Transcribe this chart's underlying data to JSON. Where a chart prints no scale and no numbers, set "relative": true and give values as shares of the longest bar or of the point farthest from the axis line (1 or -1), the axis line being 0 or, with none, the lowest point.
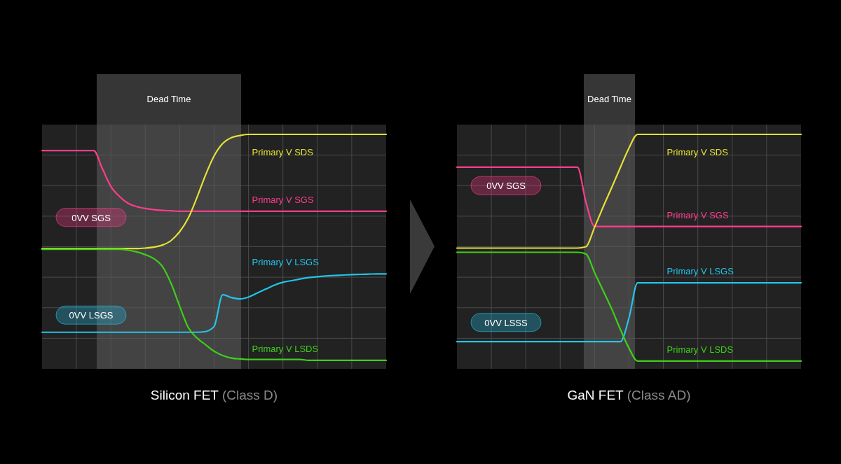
{
  "chart_data": [
    {
      "type": "line",
      "title": "Silicon FET",
      "subtitle": "(Class D)",
      "relative": true,
      "grid": true,
      "categories": [
        null,
        null,
        null,
        null,
        null,
        null,
        null,
        null,
        null,
        null,
        null,
        null,
        null,
        null,
        null,
        null,
        null,
        null,
        null,
        null,
        null,
        null,
        null,
        null,
        null,
        null,
        null,
        null,
        null,
        null,
        null,
        null,
        null,
        null,
        null,
        null,
        null,
        null,
        null,
        null,
        null
      ],
      "annotations": [
        "Dead Time",
        "0VV SGS",
        "0VV LSGS"
      ],
      "series": [
        {
          "name": "Primary V SGS",
          "color": "#ff3d8a",
          "values": [
            0.931,
            0.931,
            0.931,
            0.931,
            0.931,
            0.931,
            0.931,
            0.855,
            0.778,
            0.735,
            0.706,
            0.692,
            0.684,
            0.679,
            0.676,
            0.674,
            0.672,
            0.672,
            0.672,
            0.672,
            0.672,
            0.672,
            0.672,
            0.672,
            0.672,
            0.672,
            0.672,
            0.672,
            0.672,
            0.672,
            0.672,
            0.672,
            0.672,
            0.672,
            0.672,
            0.672,
            0.672,
            0.672,
            0.672,
            0.672,
            0.672
          ]
        },
        {
          "name": "Primary V LSGS",
          "color": "#23c4ea",
          "values": [
            0.156,
            0.156,
            0.156,
            0.156,
            0.156,
            0.156,
            0.156,
            0.156,
            0.156,
            0.156,
            0.156,
            0.156,
            0.156,
            0.156,
            0.156,
            0.156,
            0.156,
            0.156,
            0.156,
            0.159,
            0.181,
            0.316,
            0.304,
            0.298,
            0.306,
            0.323,
            0.34,
            0.357,
            0.369,
            0.376,
            0.383,
            0.389,
            0.393,
            0.396,
            0.398,
            0.4,
            0.402,
            0.403,
            0.404,
            0.405,
            0.405
          ]
        },
        {
          "name": "Primary V SDS",
          "color": "#e5e034",
          "values": [
            0.513,
            0.513,
            0.513,
            0.513,
            0.513,
            0.513,
            0.513,
            0.513,
            0.513,
            0.513,
            0.513,
            0.513,
            0.515,
            0.519,
            0.528,
            0.547,
            0.585,
            0.643,
            0.73,
            0.826,
            0.908,
            0.961,
            0.986,
            0.995,
            1,
            1,
            1,
            1,
            1,
            1,
            1,
            1,
            1,
            1,
            1,
            1,
            1,
            1,
            1,
            1,
            1
          ]
        },
        {
          "name": "Primary V LSDS",
          "color": "#3ecf1b",
          "values": [
            0.51,
            0.51,
            0.51,
            0.51,
            0.51,
            0.51,
            0.51,
            0.51,
            0.51,
            0.51,
            0.506,
            0.499,
            0.487,
            0.47,
            0.436,
            0.364,
            0.267,
            0.176,
            0.132,
            0.103,
            0.075,
            0.057,
            0.046,
            0.042,
            0.04,
            0.04,
            0.04,
            0.04,
            0.04,
            0.04,
            0.04,
            0.036,
            0.036,
            0.036,
            0.036,
            0.036,
            0.036,
            0.036,
            0.036,
            0.036,
            0.036
          ]
        }
      ]
    },
    {
      "type": "line",
      "title": "GaN FET",
      "subtitle": "(Class AD)",
      "relative": true,
      "grid": true,
      "categories": [
        null,
        null,
        null,
        null,
        null,
        null,
        null,
        null,
        null,
        null,
        null,
        null,
        null,
        null,
        null,
        null,
        null,
        null,
        null,
        null,
        null,
        null,
        null,
        null,
        null,
        null,
        null,
        null,
        null,
        null,
        null,
        null,
        null,
        null,
        null,
        null,
        null,
        null,
        null,
        null,
        null
      ],
      "annotations": [
        "Dead Time",
        "0VV SGS",
        "0VV LSSS"
      ],
      "series": [
        {
          "name": "Primary V SGS",
          "color": "#ff3d8a",
          "values": [
            0.86,
            0.86,
            0.86,
            0.86,
            0.86,
            0.86,
            0.86,
            0.86,
            0.86,
            0.86,
            0.86,
            0.86,
            0.86,
            0.86,
            0.86,
            0.71,
            0.607,
            0.607,
            0.607,
            0.607,
            0.607,
            0.607,
            0.607,
            0.607,
            0.607,
            0.607,
            0.607,
            0.607,
            0.607,
            0.607,
            0.607,
            0.607,
            0.607,
            0.607,
            0.607,
            0.607,
            0.607,
            0.607,
            0.607,
            0.607,
            0.607
          ]
        },
        {
          "name": "Primary V LSGS",
          "color": "#23c4ea",
          "values": [
            0.116,
            0.116,
            0.116,
            0.116,
            0.116,
            0.116,
            0.116,
            0.116,
            0.116,
            0.116,
            0.116,
            0.116,
            0.116,
            0.116,
            0.116,
            0.116,
            0.116,
            0.116,
            0.116,
            0.116,
            0.217,
            0.367,
            0.367,
            0.367,
            0.367,
            0.367,
            0.367,
            0.367,
            0.367,
            0.367,
            0.367,
            0.367,
            0.367,
            0.367,
            0.367,
            0.367,
            0.367,
            0.367,
            0.367,
            0.367,
            0.367
          ]
        },
        {
          "name": "Primary V SDS",
          "color": "#e5e034",
          "values": [
            0.515,
            0.515,
            0.515,
            0.515,
            0.515,
            0.515,
            0.515,
            0.515,
            0.515,
            0.515,
            0.515,
            0.515,
            0.515,
            0.515,
            0.515,
            0.521,
            0.604,
            0.691,
            0.774,
            0.859,
            0.942,
            1,
            1,
            1,
            1,
            1,
            1,
            1,
            1,
            1,
            1,
            1,
            1,
            1,
            1,
            1,
            1,
            1,
            1,
            1,
            1
          ]
        },
        {
          "name": "Primary V LSDS",
          "color": "#3ecf1b",
          "values": [
            0.497,
            0.497,
            0.497,
            0.497,
            0.497,
            0.497,
            0.497,
            0.497,
            0.497,
            0.497,
            0.497,
            0.497,
            0.497,
            0.497,
            0.497,
            0.49,
            0.41,
            0.333,
            0.255,
            0.168,
            0.088,
            0.033,
            0.033,
            0.033,
            0.033,
            0.033,
            0.033,
            0.033,
            0.033,
            0.033,
            0.033,
            0.033,
            0.033,
            0.033,
            0.033,
            0.033,
            0.033,
            0.033,
            0.033,
            0.033,
            0.033
          ]
        }
      ]
    }
  ]
}
